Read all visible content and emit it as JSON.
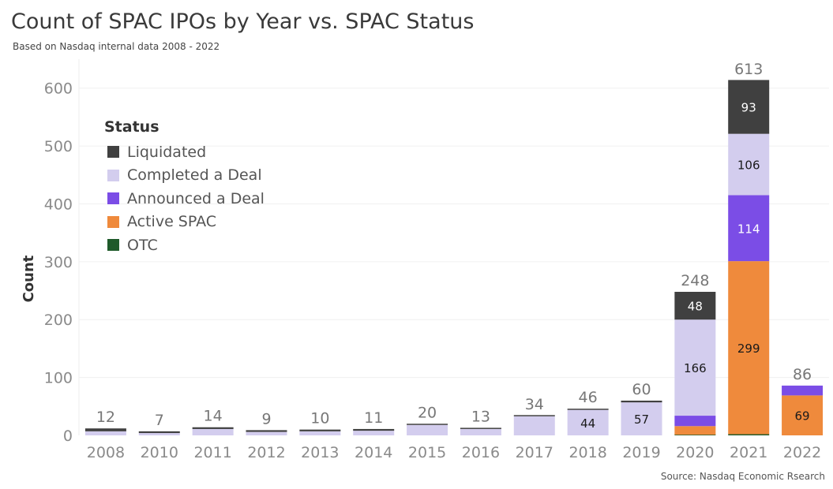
{
  "header": {
    "title": "Count of SPAC IPOs by Year vs. SPAC Status",
    "subtitle": "Based on Nasdaq internal data 2008 - 2022",
    "source": "Source: Nasdaq Economic Rsearch"
  },
  "legend": {
    "title": "Status",
    "items": [
      {
        "label": "Liquidated",
        "color": "#404040"
      },
      {
        "label": "Completed a Deal",
        "color": "#d3cdee"
      },
      {
        "label": "Announced a Deal",
        "color": "#7b4de6"
      },
      {
        "label": "Active SPAC",
        "color": "#ef8a3c"
      },
      {
        "label": "OTC",
        "color": "#1f5a2a"
      }
    ]
  },
  "chart_data": {
    "type": "bar",
    "stacked": true,
    "title": "Count of SPAC IPOs by Year vs. SPAC Status",
    "xlabel": "",
    "ylabel": "Count",
    "ylim": [
      0,
      650
    ],
    "yticks": [
      0,
      100,
      200,
      300,
      400,
      500,
      600
    ],
    "categories": [
      "2008",
      "2010",
      "2011",
      "2012",
      "2013",
      "2014",
      "2015",
      "2016",
      "2017",
      "2018",
      "2019",
      "2020",
      "2021",
      "2022"
    ],
    "totals": [
      12,
      7,
      14,
      9,
      10,
      11,
      20,
      13,
      34,
      46,
      60,
      248,
      613,
      86
    ],
    "series": [
      {
        "name": "OTC",
        "color": "#1f5a2a",
        "values": [
          0,
          0,
          0,
          0,
          0,
          0,
          0,
          0,
          0,
          0,
          0,
          1,
          2,
          0
        ]
      },
      {
        "name": "Active SPAC",
        "color": "#ef8a3c",
        "values": [
          0,
          0,
          0,
          0,
          0,
          0,
          0,
          0,
          0,
          0,
          0,
          15,
          299,
          69
        ]
      },
      {
        "name": "Announced a Deal",
        "color": "#7b4de6",
        "values": [
          0,
          0,
          0,
          0,
          0,
          0,
          0,
          0,
          0,
          0,
          0,
          18,
          114,
          17
        ]
      },
      {
        "name": "Completed a Deal",
        "color": "#d3cdee",
        "values": [
          7,
          4,
          11,
          6,
          7,
          8,
          18,
          11,
          33,
          44,
          57,
          166,
          106,
          0
        ]
      },
      {
        "name": "Liquidated",
        "color": "#404040",
        "values": [
          5,
          3,
          3,
          3,
          3,
          3,
          2,
          2,
          1,
          2,
          3,
          48,
          93,
          0
        ]
      }
    ],
    "data_labels": [
      {
        "year": "2018",
        "series": "Completed a Deal",
        "text": "44"
      },
      {
        "year": "2019",
        "series": "Completed a Deal",
        "text": "57"
      },
      {
        "year": "2020",
        "series": "Completed a Deal",
        "text": "166"
      },
      {
        "year": "2020",
        "series": "Liquidated",
        "text": "48"
      },
      {
        "year": "2021",
        "series": "Active SPAC",
        "text": "299"
      },
      {
        "year": "2021",
        "series": "Announced a Deal",
        "text": "114"
      },
      {
        "year": "2021",
        "series": "Completed a Deal",
        "text": "106"
      },
      {
        "year": "2021",
        "series": "Liquidated",
        "text": "93"
      },
      {
        "year": "2022",
        "series": "Active SPAC",
        "text": "69"
      }
    ]
  }
}
